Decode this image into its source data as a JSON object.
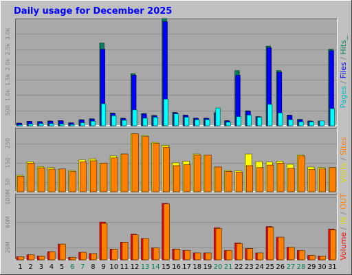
{
  "chart_data": [
    {
      "type": "bar",
      "title": "Daily usage for December 2025",
      "categories": [
        "1",
        "2",
        "3",
        "4",
        "5",
        "6",
        "7",
        "8",
        "9",
        "10",
        "11",
        "12",
        "13",
        "14",
        "15",
        "16",
        "17",
        "18",
        "19",
        "20",
        "21",
        "22",
        "23",
        "24",
        "25",
        "26",
        "27",
        "28",
        "29",
        "30",
        "31"
      ],
      "weekend_categories": [
        "6",
        "7",
        "13",
        "14",
        "20",
        "21",
        "27",
        "28"
      ],
      "ylabel_parts": [
        "Pages",
        " / ",
        "Files",
        " / ",
        "Hits",
        "_"
      ],
      "ytick_labels": [
        "500",
        "1.0k",
        "1.5k",
        "2.0k",
        "2.5k",
        "3.0k"
      ],
      "ylim": [
        0,
        3500
      ],
      "series": [
        {
          "name": "Hits",
          "color": "#00805c",
          "values": [
            90,
            150,
            140,
            160,
            170,
            100,
            200,
            230,
            2700,
            420,
            250,
            1700,
            400,
            340,
            3500,
            440,
            350,
            250,
            250,
            430,
            170,
            1800,
            490,
            300,
            2600,
            1800,
            350,
            210,
            160,
            160,
            2500
          ]
        },
        {
          "name": "Files",
          "color": "#0000ff",
          "values": [
            80,
            140,
            130,
            150,
            160,
            90,
            190,
            220,
            2500,
            400,
            240,
            1650,
            390,
            320,
            3400,
            420,
            340,
            240,
            240,
            410,
            160,
            1650,
            480,
            290,
            2550,
            1750,
            340,
            200,
            150,
            150,
            2450
          ]
        },
        {
          "name": "Pages",
          "color": "#00ffff",
          "values": [
            30,
            60,
            70,
            70,
            60,
            40,
            100,
            150,
            720,
            330,
            180,
            520,
            250,
            280,
            870,
            390,
            280,
            200,
            200,
            580,
            120,
            300,
            350,
            280,
            700,
            420,
            200,
            130,
            130,
            160,
            560
          ]
        }
      ]
    },
    {
      "type": "bar",
      "categories": [
        "1",
        "2",
        "3",
        "4",
        "5",
        "6",
        "7",
        "8",
        "9",
        "10",
        "11",
        "12",
        "13",
        "14",
        "15",
        "16",
        "17",
        "18",
        "19",
        "20",
        "21",
        "22",
        "23",
        "24",
        "25",
        "26",
        "27",
        "28",
        "29",
        "30",
        "31"
      ],
      "ylabel_parts": [
        "Visits",
        " / ",
        "Sites"
      ],
      "ytick_labels": [
        "50",
        "150",
        "250"
      ],
      "ylim": [
        0,
        330
      ],
      "series": [
        {
          "name": "Visits",
          "color": "#ffff00",
          "values": [
            85,
            155,
            130,
            125,
            115,
            110,
            165,
            170,
            148,
            185,
            195,
            300,
            290,
            255,
            240,
            150,
            158,
            195,
            190,
            128,
            110,
            108,
            195,
            156,
            154,
            158,
            142,
            190,
            128,
            125,
            125
          ]
        },
        {
          "name": "Sites",
          "color": "#ff8000",
          "values": [
            80,
            148,
            124,
            117,
            118,
            105,
            155,
            160,
            148,
            175,
            195,
            300,
            285,
            250,
            230,
            135,
            140,
            190,
            190,
            128,
            105,
            102,
            135,
            125,
            138,
            148,
            122,
            185,
            115,
            118,
            125
          ]
        }
      ]
    },
    {
      "type": "bar",
      "categories": [
        "1",
        "2",
        "3",
        "4",
        "5",
        "6",
        "7",
        "8",
        "9",
        "10",
        "11",
        "12",
        "13",
        "14",
        "15",
        "16",
        "17",
        "18",
        "19",
        "20",
        "21",
        "22",
        "23",
        "24",
        "25",
        "26",
        "27",
        "28",
        "29",
        "30",
        "31"
      ],
      "ylabel_parts": [
        "Volume",
        " / ",
        "IN",
        " / ",
        "OUT"
      ],
      "ytick_labels": [
        "20M",
        "60M",
        "100M"
      ],
      "ylim": [
        0,
        105
      ],
      "series": [
        {
          "name": "Volume",
          "color": "#ff0000",
          "values": [
            5,
            8,
            6,
            13,
            25,
            4,
            12,
            10,
            60,
            17,
            28,
            41,
            34,
            19,
            90,
            17,
            15,
            11,
            11,
            51,
            15,
            27,
            18,
            11,
            53,
            36,
            20,
            15,
            7,
            6,
            49
          ]
        },
        {
          "name": "OUT",
          "color": "#ff8000",
          "values": [
            5,
            8,
            6,
            13,
            25,
            4,
            12,
            10,
            58,
            17,
            28,
            40,
            34,
            19,
            89,
            17,
            15,
            11,
            11,
            50,
            15,
            26,
            18,
            11,
            52,
            36,
            20,
            15,
            7,
            6,
            48
          ]
        }
      ]
    }
  ]
}
